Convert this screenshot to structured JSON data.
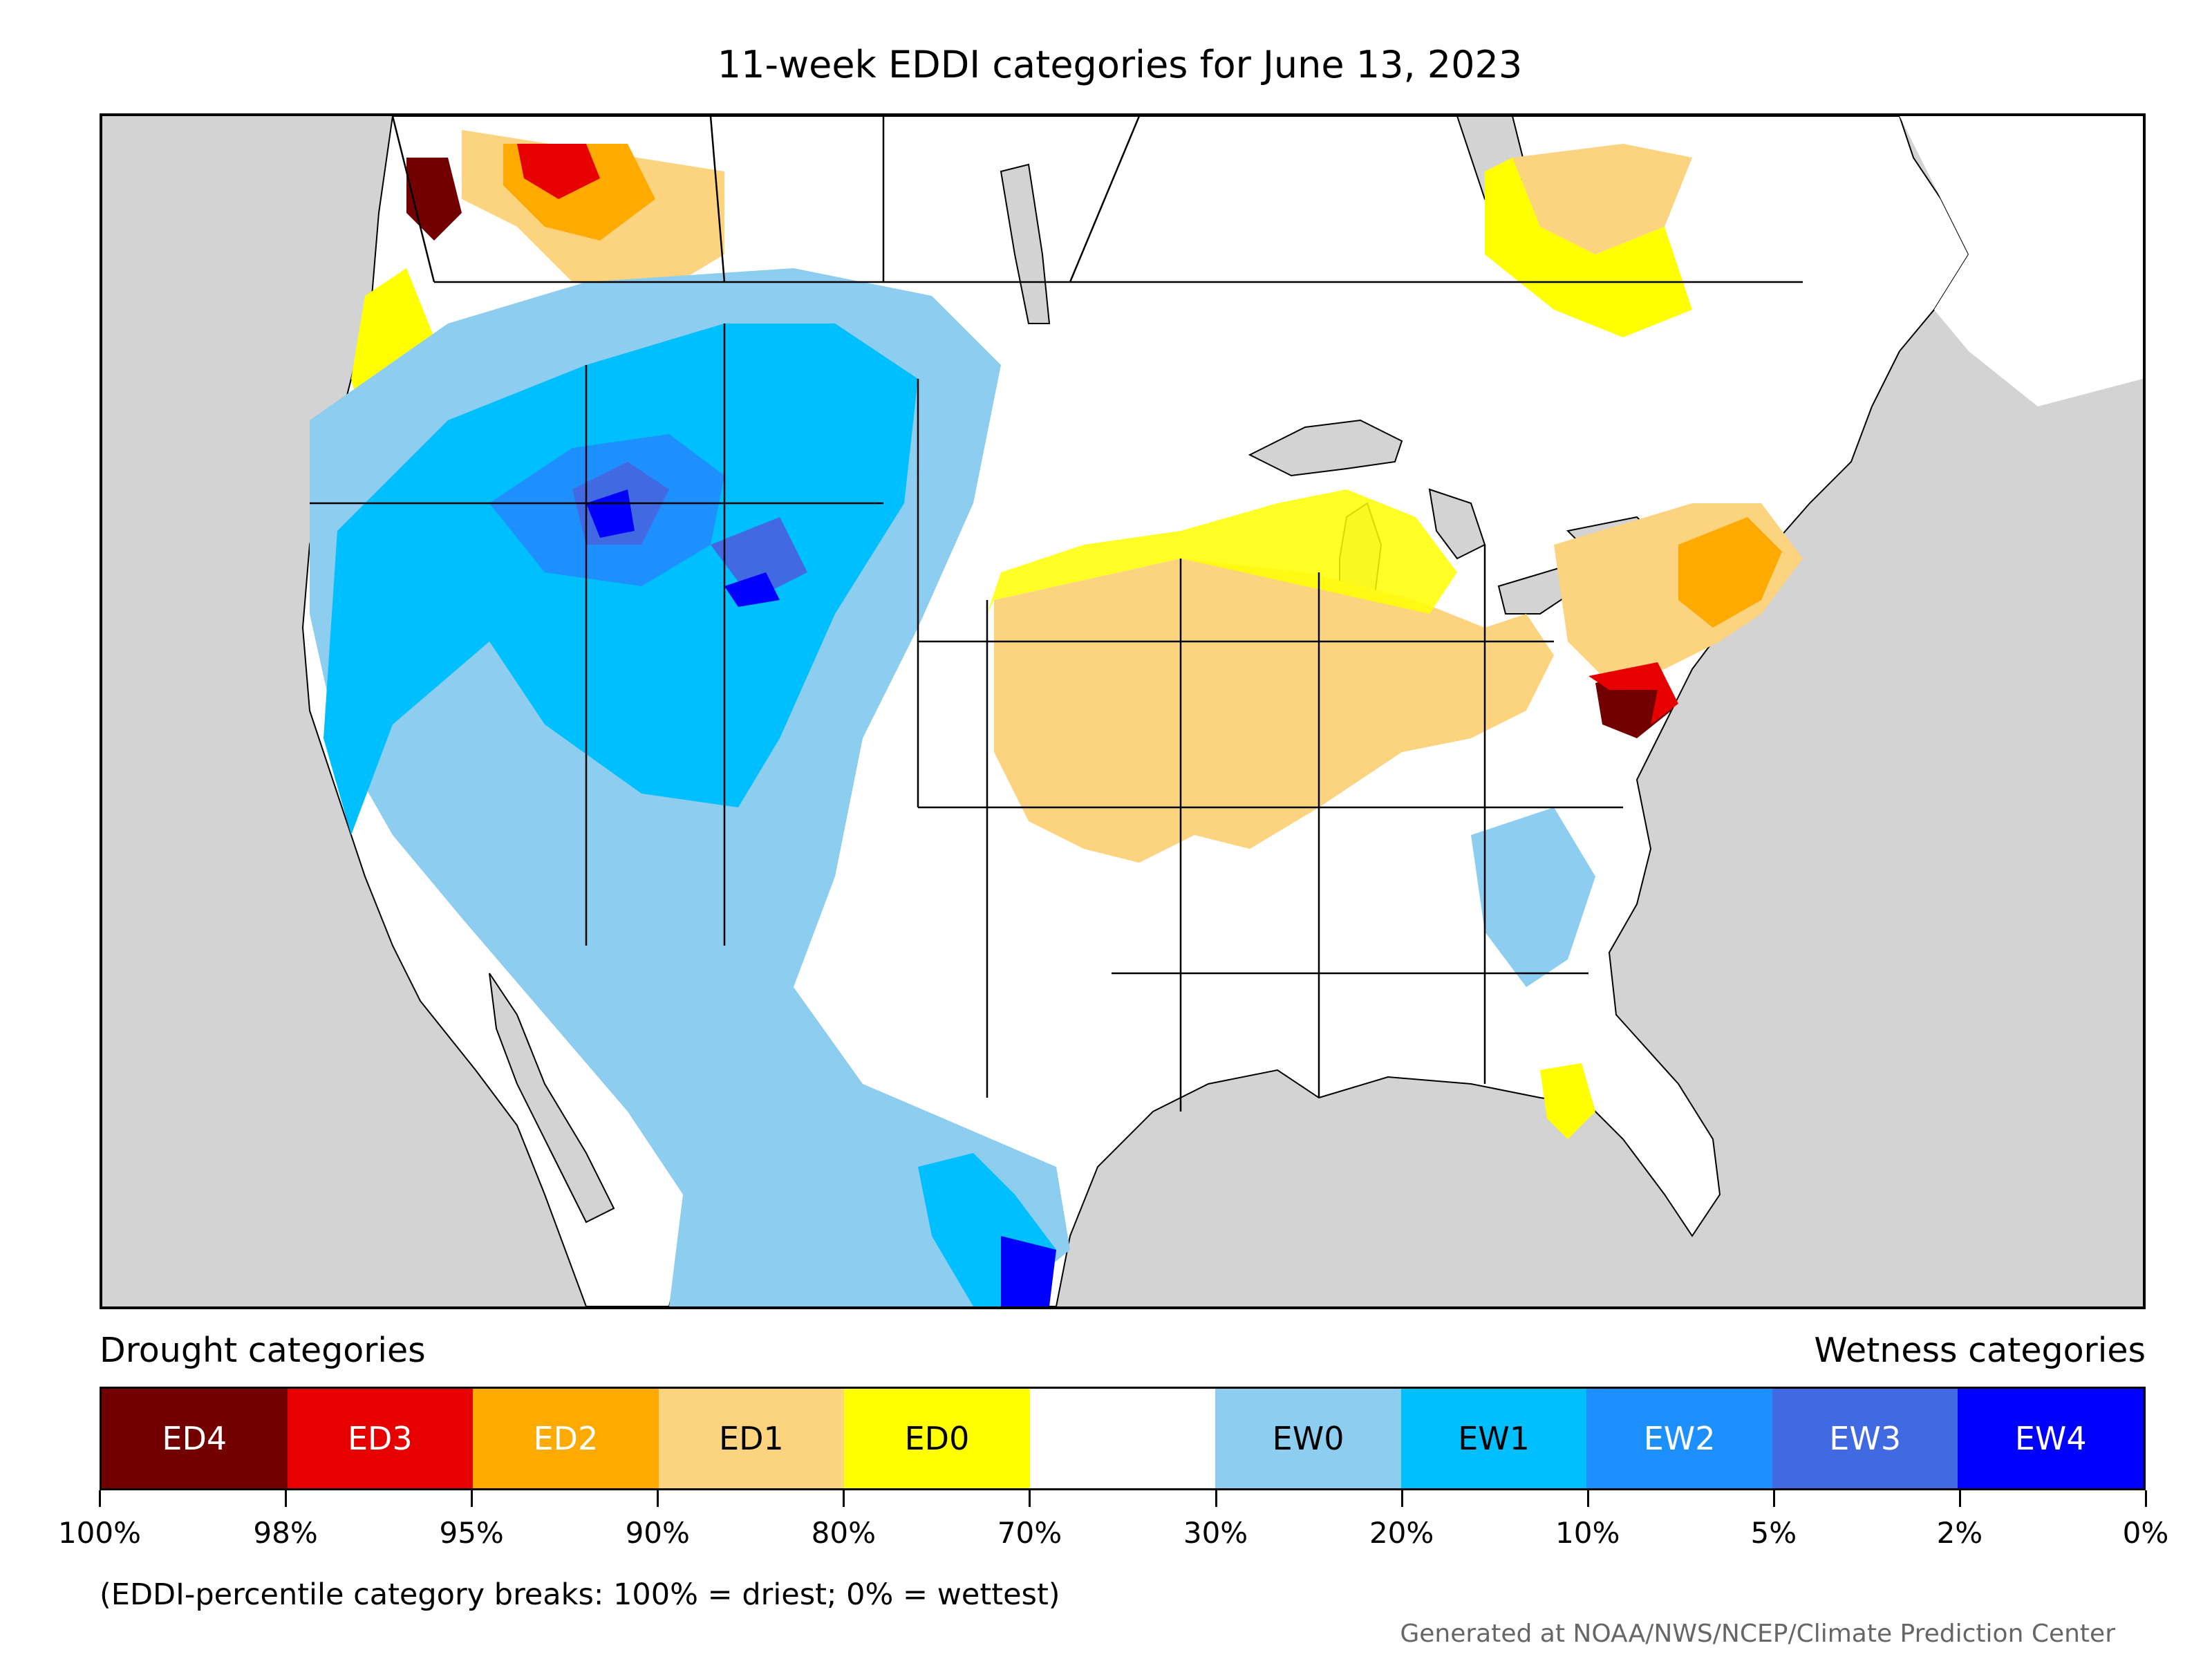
{
  "title": "11-week EDDI categories for June 13, 2023",
  "legend": {
    "drought_label": "Drought categories",
    "wetness_label": "Wetness categories",
    "categories": [
      {
        "label": "ED4",
        "color": "#730000",
        "text_color": "#ffffff"
      },
      {
        "label": "ED3",
        "color": "#e60000",
        "text_color": "#ffffff"
      },
      {
        "label": "ED2",
        "color": "#ffaa00",
        "text_color": "#ffffff"
      },
      {
        "label": "ED1",
        "color": "#fcd37f",
        "text_color": "#000000"
      },
      {
        "label": "ED0",
        "color": "#ffff00",
        "text_color": "#000000"
      },
      {
        "label": "",
        "color": "#ffffff",
        "text_color": "#000000"
      },
      {
        "label": "EW0",
        "color": "#8ccdf0",
        "text_color": "#000000"
      },
      {
        "label": "EW1",
        "color": "#00bfff",
        "text_color": "#000000"
      },
      {
        "label": "EW2",
        "color": "#1e8fff",
        "text_color": "#ffffff"
      },
      {
        "label": "EW3",
        "color": "#4169e1",
        "text_color": "#ffffff"
      },
      {
        "label": "EW4",
        "color": "#0000ff",
        "text_color": "#ffffff"
      }
    ],
    "tick_labels": [
      "100%",
      "98%",
      "95%",
      "90%",
      "80%",
      "70%",
      "30%",
      "20%",
      "10%",
      "5%",
      "2%",
      "0%"
    ]
  },
  "note": "(EDDI-percentile category breaks: 100% = driest; 0% = wettest)",
  "credit": "Generated at NOAA/NWS/NCEP/Climate Prediction Center",
  "map": {
    "background_color": "#d3d3d3",
    "land_color": "#ffffff"
  }
}
